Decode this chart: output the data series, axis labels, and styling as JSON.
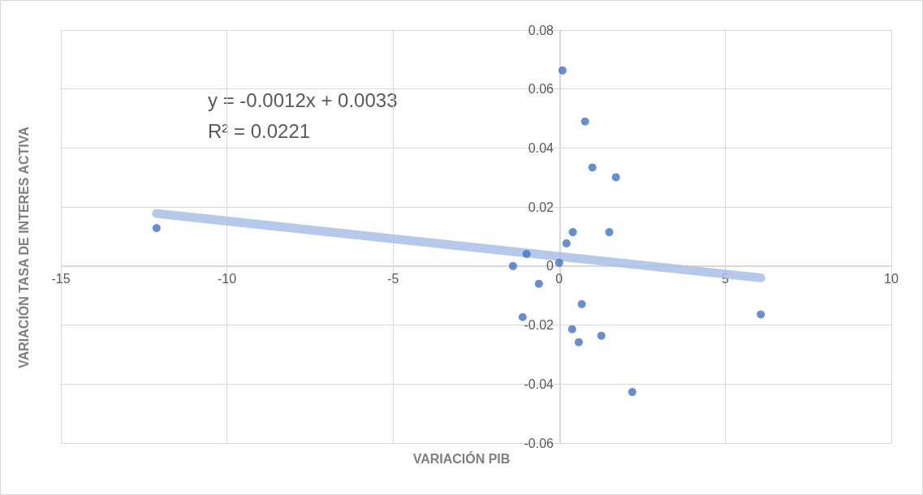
{
  "chart_data": {
    "type": "scatter",
    "xlabel": "VARIACIÓN PIB",
    "ylabel": "VARIACIÓN TASA DE INTERES ACTIVA",
    "annotations": [
      "y = -0.0012x + 0.0033",
      "R² = 0.0221"
    ],
    "series": [
      {
        "marker": "circle",
        "color": "#4472c4",
        "x": [
          -12.12,
          0.1,
          0.78,
          1.0,
          1.71,
          0.41,
          1.51,
          0.22,
          -0.98,
          -1.39,
          0,
          -0.61,
          0.68,
          -1.1,
          6.07,
          0.39,
          1.27,
          0.59,
          2.2
        ],
        "values": [
          0.0129,
          0.0663,
          0.049,
          0.0334,
          0.0301,
          0.0115,
          0.0115,
          0.0077,
          0.0041,
          0,
          0.0011,
          -0.006,
          -0.0129,
          -0.0173,
          -0.0164,
          -0.0214,
          -0.0236,
          -0.0258,
          -0.0427
        ]
      },
      {
        "type": "line",
        "color": "#a9bfe6",
        "x": [
          -12.12,
          6.07
        ],
        "values": [
          0.0178,
          -0.004
        ]
      }
    ],
    "xlim": [
      -15,
      10
    ],
    "xticks": [
      -15,
      -10,
      -5,
      0,
      5,
      10
    ],
    "ylim": [
      -0.06,
      0.08
    ],
    "yticks": [
      -0.06,
      -0.04,
      -0.02,
      0,
      0.02,
      0.04,
      0.06,
      0.08
    ],
    "grid": true
  }
}
